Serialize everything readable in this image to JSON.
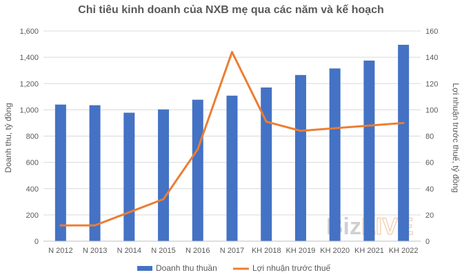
{
  "chart_data": {
    "type": "bar",
    "title": "Chỉ tiêu kinh doanh của NXB mẹ qua các năm và kế hoạch",
    "categories": [
      "N 2012",
      "N 2013",
      "N 2014",
      "N 2015",
      "N 2016",
      "N 2017",
      "KH 2018",
      "KH 2019",
      "KH 2020",
      "KH 2021",
      "KH 2022"
    ],
    "ylabel": "Doanh thu, tỷ đồng",
    "y2label": "Lợi nhuận trước thuế, tỷ đồng",
    "ylim": [
      0,
      1600
    ],
    "y2lim": [
      0,
      160
    ],
    "yticks": [
      "0",
      "200",
      "400",
      "600",
      "800",
      "1,000",
      "1,200",
      "1,400",
      "1,600"
    ],
    "y2ticks": [
      "0",
      "20",
      "40",
      "60",
      "80",
      "100",
      "120",
      "140",
      "160"
    ],
    "grid": true,
    "legend_position": "bottom",
    "series": [
      {
        "name": "Doanh thu thuần",
        "type": "bar",
        "axis": "left",
        "color": "#4472C4",
        "values": [
          1040,
          1035,
          978,
          1003,
          1077,
          1108,
          1170,
          1265,
          1315,
          1375,
          1495
        ]
      },
      {
        "name": "Lợi nhuận trước thuế",
        "type": "line",
        "axis": "right",
        "color": "#ED7D31",
        "values": [
          12,
          12,
          22,
          32,
          70,
          144,
          91,
          84,
          86,
          88,
          90
        ]
      }
    ]
  },
  "watermark": "BizLIVE"
}
